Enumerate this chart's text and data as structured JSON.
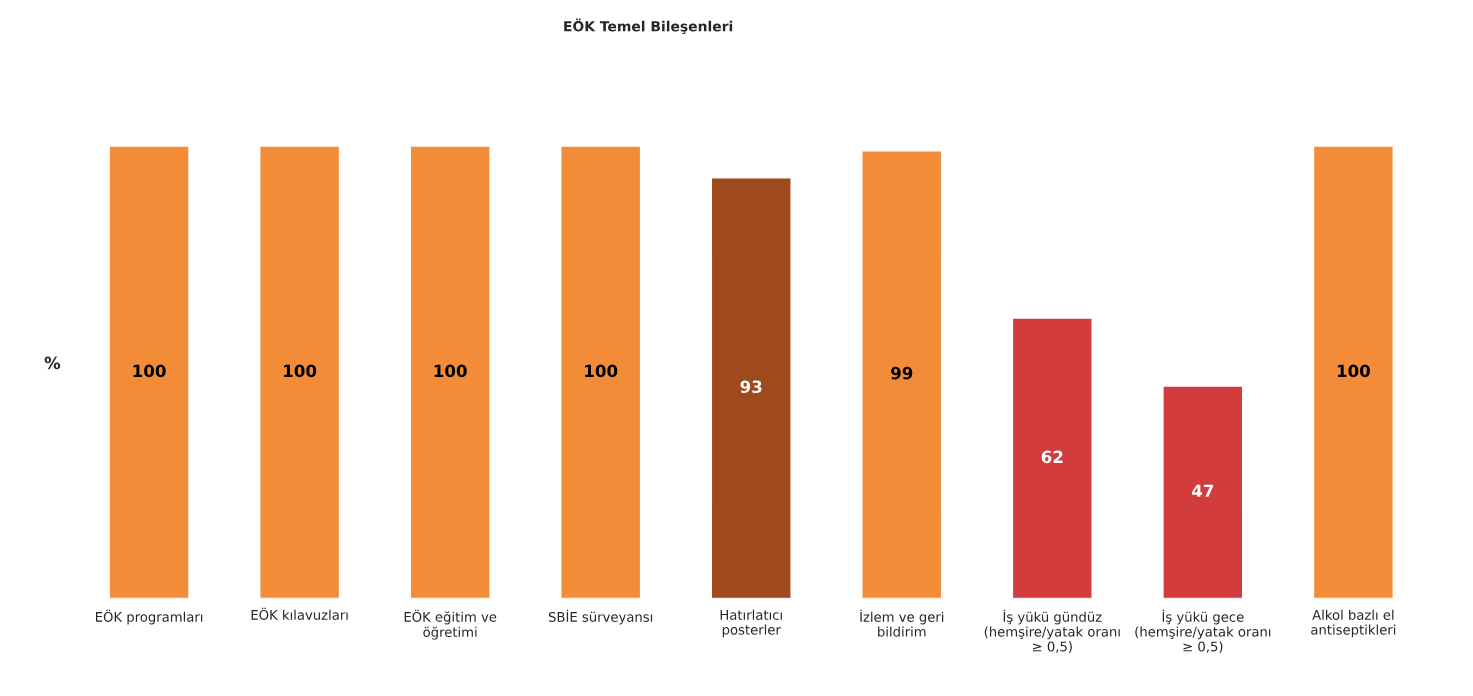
{
  "chart_data": {
    "type": "bar",
    "title": "EÖK Temel Bileşenleri",
    "ylabel": "%",
    "categories": [
      "EÖK programları",
      "EÖK kılavuzları",
      "EÖK eğitim ve öğretimi",
      "SBİE sürveyansı",
      "Hatırlatıcı posterler",
      "İzlem ve geri bildirim",
      "İş yükü gündüz (hemşire/yatak oranı ≥ 0,5)",
      "İş yükü gece (hemşire/yatak oranı ≥ 0,5)",
      "Alkol bazlı el antiseptikleri"
    ],
    "values": [
      100,
      100,
      100,
      100,
      93,
      99,
      62,
      47,
      100
    ],
    "colors": [
      "#f28c38",
      "#f28c38",
      "#f28c38",
      "#f28c38",
      "#9e4a1c",
      "#f28c38",
      "#d23c3c",
      "#d23c3c",
      "#f28c38"
    ],
    "ylim": [
      0,
      100
    ],
    "tick_labels": "x",
    "data_labels": true,
    "grid": false,
    "legend": false
  }
}
